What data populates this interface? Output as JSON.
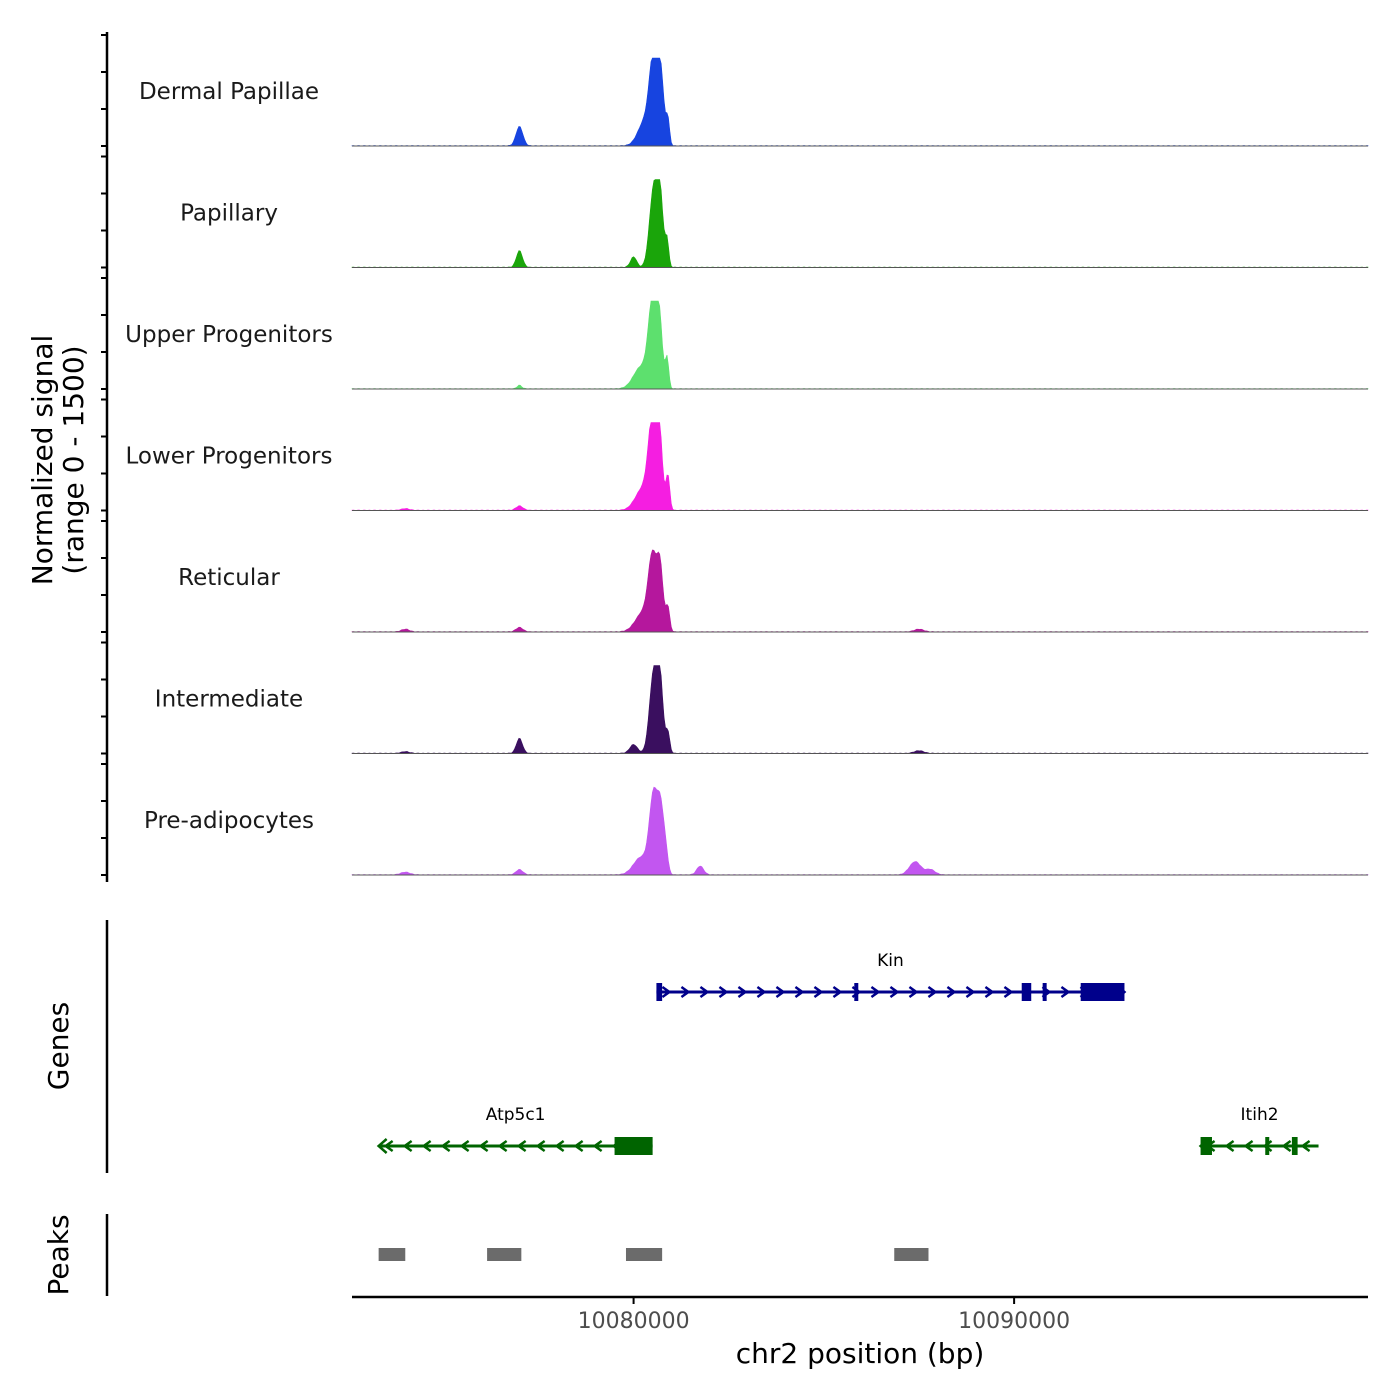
{
  "chart_data": {
    "type": "area",
    "title": "",
    "ylabel_line1": "Normalized signal",
    "ylabel_line2": "(range 0 - 1500)",
    "ylim": [
      0,
      1500
    ],
    "xlabel": "chr2 position (bp)",
    "xlim": [
      10072600,
      10099300
    ],
    "xticks": [
      {
        "value": 10080000,
        "label": "10080000"
      },
      {
        "value": 10090000,
        "label": "10090000"
      }
    ],
    "tracks": [
      {
        "name": "Dermal Papillae",
        "color": "#1744e0",
        "peaks": [
          {
            "center": 10077000,
            "height": 0.22,
            "width": 90
          },
          {
            "center": 10080300,
            "height": 0.28,
            "width": 180
          },
          {
            "center": 10080530,
            "height": 0.95,
            "width": 110
          },
          {
            "center": 10080720,
            "height": 0.72,
            "width": 80
          },
          {
            "center": 10080900,
            "height": 0.3,
            "width": 45
          }
        ]
      },
      {
        "name": "Papillary",
        "color": "#1aa50a",
        "peaks": [
          {
            "center": 10077000,
            "height": 0.19,
            "width": 80
          },
          {
            "center": 10080000,
            "height": 0.12,
            "width": 80
          },
          {
            "center": 10080530,
            "height": 0.9,
            "width": 110
          },
          {
            "center": 10080700,
            "height": 0.72,
            "width": 80
          },
          {
            "center": 10080880,
            "height": 0.3,
            "width": 45
          }
        ]
      },
      {
        "name": "Upper Progenitors",
        "color": "#5de06e",
        "peaks": [
          {
            "center": 10077000,
            "height": 0.04,
            "width": 60
          },
          {
            "center": 10080200,
            "height": 0.25,
            "width": 200
          },
          {
            "center": 10080500,
            "height": 0.95,
            "width": 110
          },
          {
            "center": 10080680,
            "height": 0.7,
            "width": 80
          },
          {
            "center": 10080880,
            "height": 0.35,
            "width": 45
          }
        ]
      },
      {
        "name": "Lower Progenitors",
        "color": "#f51ee1",
        "peaks": [
          {
            "center": 10074000,
            "height": 0.02,
            "width": 100
          },
          {
            "center": 10077000,
            "height": 0.05,
            "width": 90
          },
          {
            "center": 10080250,
            "height": 0.25,
            "width": 200
          },
          {
            "center": 10080500,
            "height": 0.97,
            "width": 110
          },
          {
            "center": 10080680,
            "height": 0.8,
            "width": 80
          },
          {
            "center": 10080900,
            "height": 0.4,
            "width": 50
          }
        ]
      },
      {
        "name": "Reticular",
        "color": "#b5179d",
        "peaks": [
          {
            "center": 10074000,
            "height": 0.03,
            "width": 100
          },
          {
            "center": 10077000,
            "height": 0.05,
            "width": 90
          },
          {
            "center": 10080250,
            "height": 0.22,
            "width": 200
          },
          {
            "center": 10080500,
            "height": 0.8,
            "width": 110
          },
          {
            "center": 10080700,
            "height": 0.68,
            "width": 80
          },
          {
            "center": 10080900,
            "height": 0.28,
            "width": 50
          },
          {
            "center": 10087500,
            "height": 0.03,
            "width": 120
          }
        ]
      },
      {
        "name": "Intermediate",
        "color": "#3a0f5f",
        "peaks": [
          {
            "center": 10074000,
            "height": 0.02,
            "width": 100
          },
          {
            "center": 10077000,
            "height": 0.17,
            "width": 80
          },
          {
            "center": 10080000,
            "height": 0.1,
            "width": 100
          },
          {
            "center": 10080530,
            "height": 0.92,
            "width": 110
          },
          {
            "center": 10080700,
            "height": 0.72,
            "width": 80
          },
          {
            "center": 10080900,
            "height": 0.24,
            "width": 50
          },
          {
            "center": 10087500,
            "height": 0.03,
            "width": 120
          }
        ]
      },
      {
        "name": "Pre-adipocytes",
        "color": "#c256f0",
        "peaks": [
          {
            "center": 10074000,
            "height": 0.03,
            "width": 120
          },
          {
            "center": 10077000,
            "height": 0.06,
            "width": 90
          },
          {
            "center": 10080200,
            "height": 0.2,
            "width": 200
          },
          {
            "center": 10080530,
            "height": 0.9,
            "width": 110
          },
          {
            "center": 10080720,
            "height": 0.65,
            "width": 80
          },
          {
            "center": 10080850,
            "height": 0.22,
            "width": 60
          },
          {
            "center": 10081750,
            "height": 0.1,
            "width": 90
          },
          {
            "center": 10087400,
            "height": 0.15,
            "width": 150
          },
          {
            "center": 10087800,
            "height": 0.06,
            "width": 120
          }
        ]
      }
    ],
    "genes_label": "Genes",
    "genes": [
      {
        "name": "Kin",
        "strand": "+",
        "color": "#00008b",
        "start": 10080600,
        "end": 10092900,
        "exons": [
          [
            10080600,
            10080750
          ],
          [
            10085800,
            10085900
          ],
          [
            10090200,
            10090450
          ],
          [
            10090750,
            10090850
          ],
          [
            10091750,
            10092900
          ]
        ]
      },
      {
        "name": "Atp5c1",
        "strand": "-",
        "color": "#006400",
        "start": 10073300,
        "end": 10080500,
        "exons": [
          [
            10079500,
            10080500
          ]
        ]
      },
      {
        "name": "Itih2",
        "strand": "-",
        "color": "#006400",
        "start": 10094900,
        "end": 10098000,
        "exons": [
          [
            10094900,
            10095200
          ],
          [
            10096600,
            10096700
          ],
          [
            10097300,
            10097450
          ]
        ]
      }
    ],
    "peaks_label": "Peaks",
    "peak_regions": [
      [
        10073300,
        10074000
      ],
      [
        10076150,
        10077050
      ],
      [
        10079800,
        10080750
      ],
      [
        10086850,
        10087750
      ]
    ],
    "peak_color": "#6b6b6b"
  }
}
